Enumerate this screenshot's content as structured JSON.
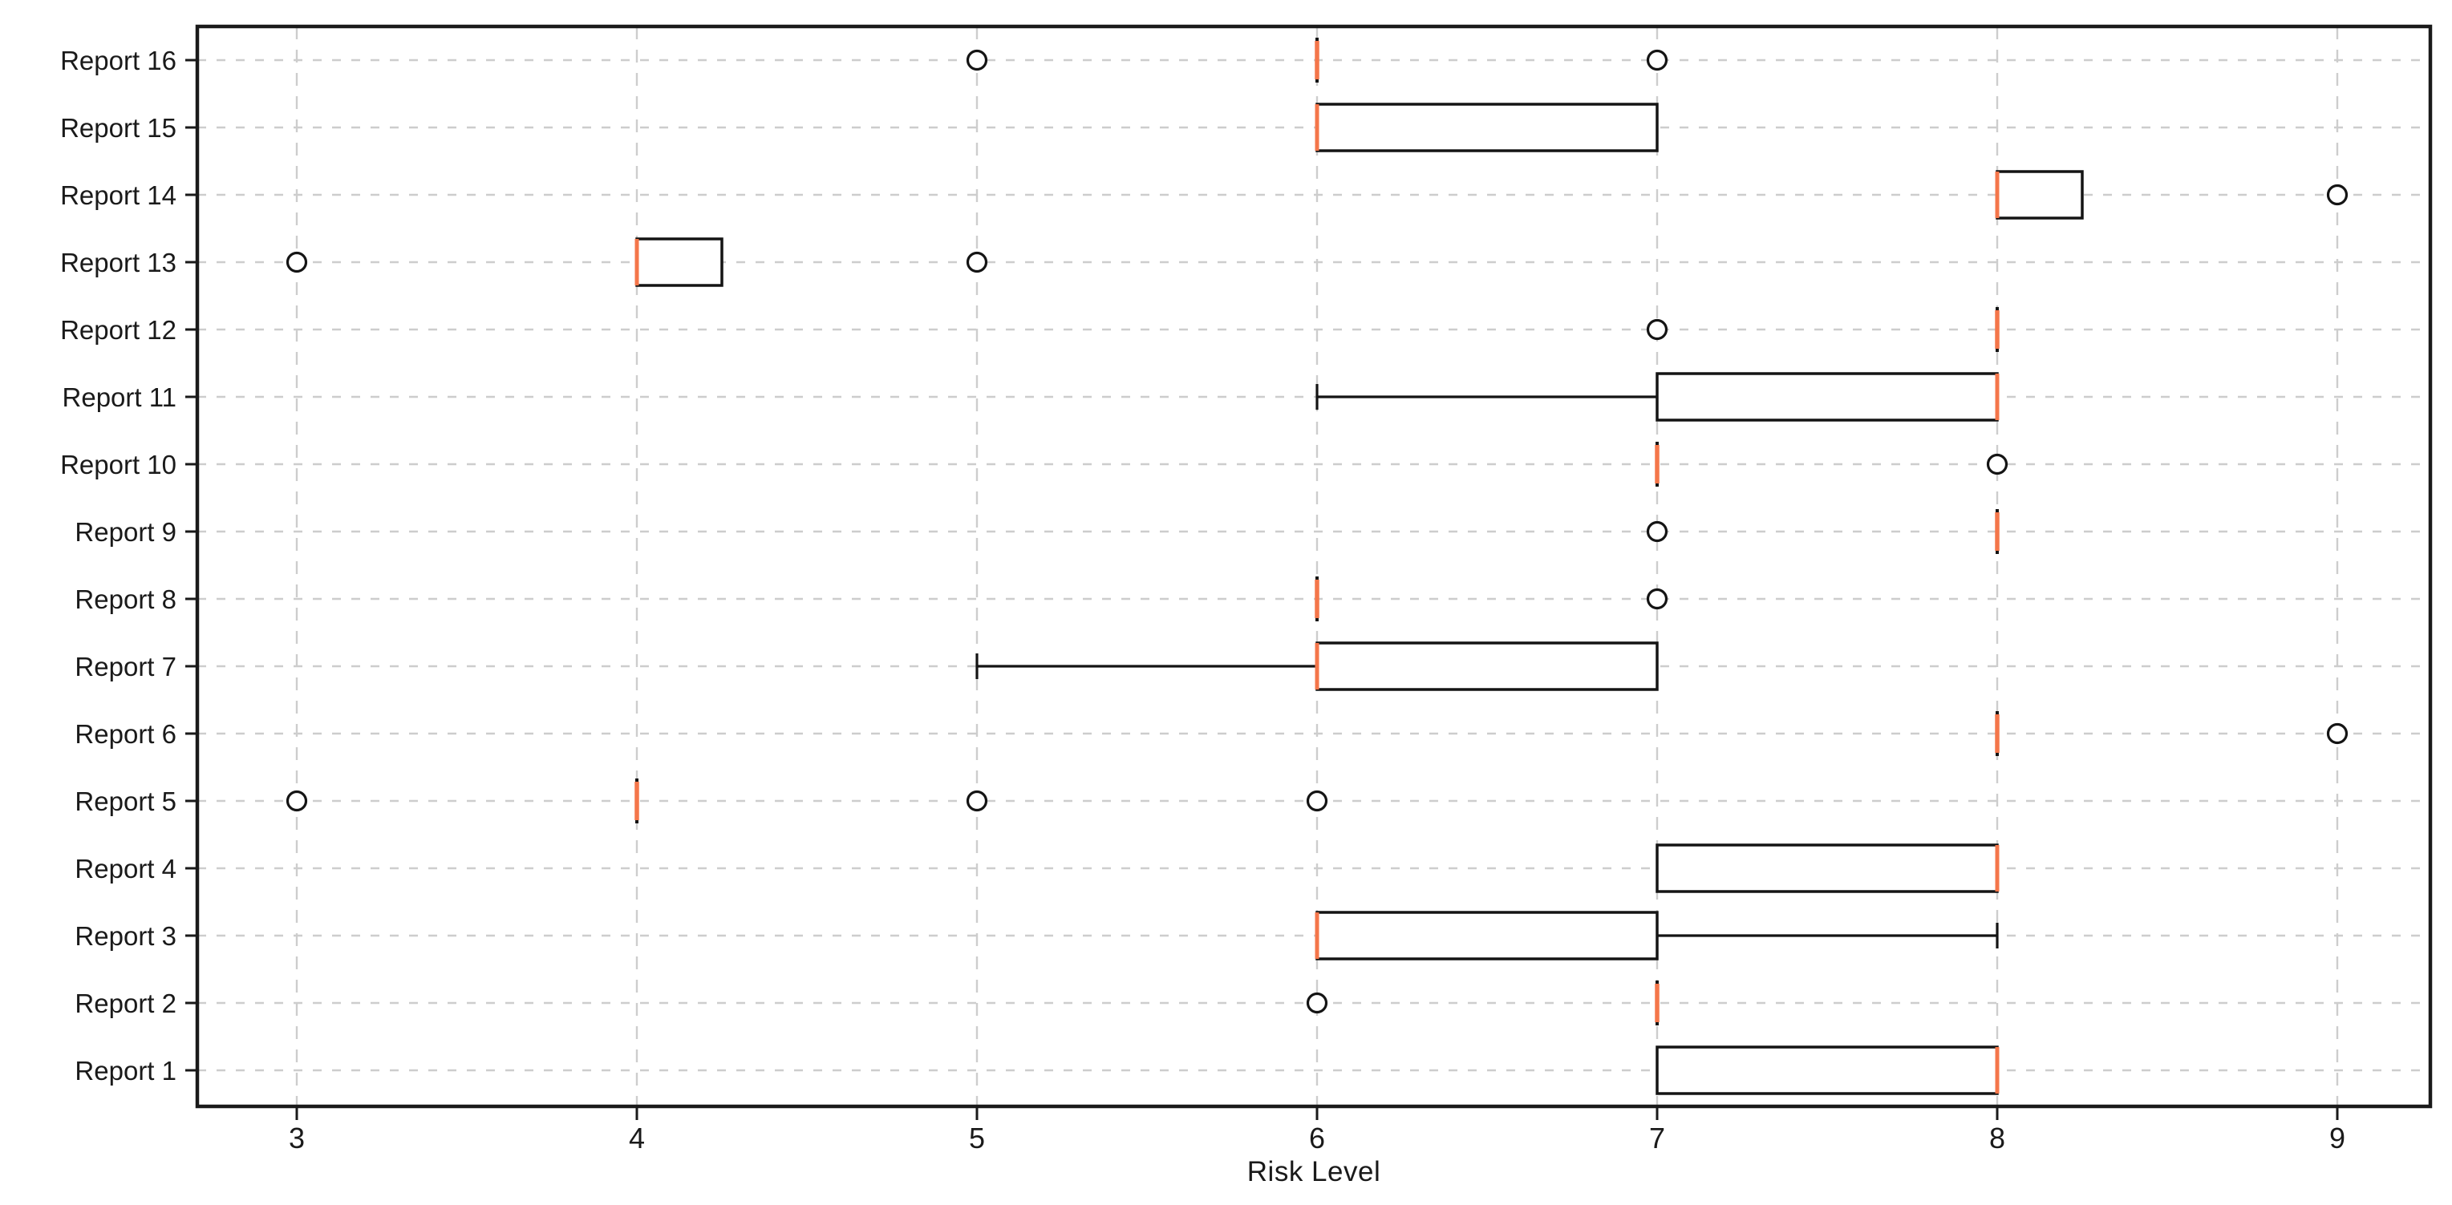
{
  "chart_data": {
    "type": "boxplot",
    "orientation": "horizontal",
    "title": "",
    "xlabel": "Risk Level",
    "ylabel": "",
    "x_ticks": [
      3,
      4,
      5,
      6,
      7,
      8,
      9
    ],
    "xlim": [
      2.71,
      9.22
    ],
    "grid": "both-dashed",
    "legend": "none",
    "categories": [
      "Report 1",
      "Report 2",
      "Report 3",
      "Report 4",
      "Report 5",
      "Report 6",
      "Report 7",
      "Report 8",
      "Report 9",
      "Report 10",
      "Report 11",
      "Report 12",
      "Report 13",
      "Report 14",
      "Report 15",
      "Report 16"
    ],
    "boxes": [
      {
        "label": "Report 1",
        "whislo": 7,
        "q1": 7,
        "med": 8,
        "q3": 8,
        "whishi": 8,
        "outliers": []
      },
      {
        "label": "Report 2",
        "whislo": 7,
        "q1": 7,
        "med": 7,
        "q3": 7,
        "whishi": 7,
        "outliers": [
          6
        ]
      },
      {
        "label": "Report 3",
        "whislo": 6,
        "q1": 6,
        "med": 6,
        "q3": 7,
        "whishi": 8,
        "outliers": []
      },
      {
        "label": "Report 4",
        "whislo": 7,
        "q1": 7,
        "med": 8,
        "q3": 8,
        "whishi": 8,
        "outliers": []
      },
      {
        "label": "Report 5",
        "whislo": 4,
        "q1": 4,
        "med": 4,
        "q3": 4,
        "whishi": 4,
        "outliers": [
          3,
          5,
          6
        ]
      },
      {
        "label": "Report 6",
        "whislo": 8,
        "q1": 8,
        "med": 8,
        "q3": 8,
        "whishi": 8,
        "outliers": [
          9
        ]
      },
      {
        "label": "Report 7",
        "whislo": 5,
        "q1": 6,
        "med": 6,
        "q3": 7,
        "whishi": 7,
        "outliers": []
      },
      {
        "label": "Report 8",
        "whislo": 6,
        "q1": 6,
        "med": 6,
        "q3": 6,
        "whishi": 6,
        "outliers": [
          7
        ]
      },
      {
        "label": "Report 9",
        "whislo": 8,
        "q1": 8,
        "med": 8,
        "q3": 8,
        "whishi": 8,
        "outliers": [
          7
        ]
      },
      {
        "label": "Report 10",
        "whislo": 7,
        "q1": 7,
        "med": 7,
        "q3": 7,
        "whishi": 7,
        "outliers": [
          8
        ]
      },
      {
        "label": "Report 11",
        "whislo": 6,
        "q1": 7,
        "med": 8,
        "q3": 8,
        "whishi": 8,
        "outliers": []
      },
      {
        "label": "Report 12",
        "whislo": 8,
        "q1": 8,
        "med": 8,
        "q3": 8,
        "whishi": 8,
        "outliers": [
          7
        ]
      },
      {
        "label": "Report 13",
        "whislo": 4,
        "q1": 4,
        "med": 4,
        "q3": 4.25,
        "whishi": 4.25,
        "outliers": [
          3,
          5
        ]
      },
      {
        "label": "Report 14",
        "whislo": 8,
        "q1": 8,
        "med": 8,
        "q3": 8.25,
        "whishi": 8.25,
        "outliers": [
          9
        ]
      },
      {
        "label": "Report 15",
        "whislo": 6,
        "q1": 6,
        "med": 6,
        "q3": 7,
        "whishi": 7,
        "outliers": []
      },
      {
        "label": "Report 16",
        "whislo": 6,
        "q1": 6,
        "med": 6,
        "q3": 6,
        "whishi": 6,
        "outliers": [
          5,
          7
        ]
      }
    ],
    "colors": {
      "box_edge": "#141414",
      "median": "#f4764a",
      "whisker": "#141414",
      "outlier_edge": "#141414",
      "grid": "#cdcdcd",
      "spine": "#1a1a1a",
      "text": "#1a1a1a",
      "background": "#ffffff"
    }
  }
}
